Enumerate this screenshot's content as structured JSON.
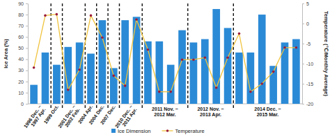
{
  "chart_data": {
    "type": "bar",
    "categories": [
      "1996 Dec. ~ 1997 Apr.",
      null,
      "1999 Oct.",
      "2001 Dec. ~ 2002 Feb.",
      null,
      "2004 Apr.",
      "2004 Dec.",
      "2007 Dec.",
      "2010 Dec. ~ 2011 Apr.",
      null,
      "2011 Nov. ~ 2012 Mar.",
      null,
      null,
      null,
      "2012 Nov. ~ 2013 Apr.",
      null,
      null,
      null,
      "2014 Dec. ~ 2015 Mar.",
      null,
      null,
      null,
      null,
      null
    ],
    "series": [
      {
        "name": "Ice Dimension",
        "type": "bar",
        "color": "#2b8ad6",
        "values": [
          17,
          46,
          35,
          51,
          55,
          45,
          75,
          32,
          75,
          78,
          56,
          56,
          35,
          66,
          55,
          58,
          85,
          68,
          46,
          46,
          80,
          34,
          55,
          58
        ]
      },
      {
        "name": "Temperature",
        "type": "line",
        "axis": "y2",
        "color": "#f0c33c",
        "marker": "circle",
        "values": [
          -11,
          2,
          2.3,
          -16.5,
          -11.5,
          2,
          -3.5,
          -13,
          -15.5,
          1,
          -6.5,
          -17,
          -17,
          -9,
          -9,
          -8.5,
          -16,
          -8.5,
          -2.5,
          -17,
          -15,
          -12,
          -6,
          -6
        ]
      }
    ],
    "y_label": "Ice Area (%)",
    "y2_label": "Temperature (℃/Monthly Average)",
    "ylim": [
      0,
      90
    ],
    "yticks": [
      0,
      10,
      20,
      30,
      40,
      50,
      60,
      70,
      80,
      90
    ],
    "y2lim": [
      -20,
      5
    ],
    "y2ticks": [
      -20,
      -15,
      -10,
      -5,
      0,
      5
    ],
    "legend": "bottom"
  }
}
